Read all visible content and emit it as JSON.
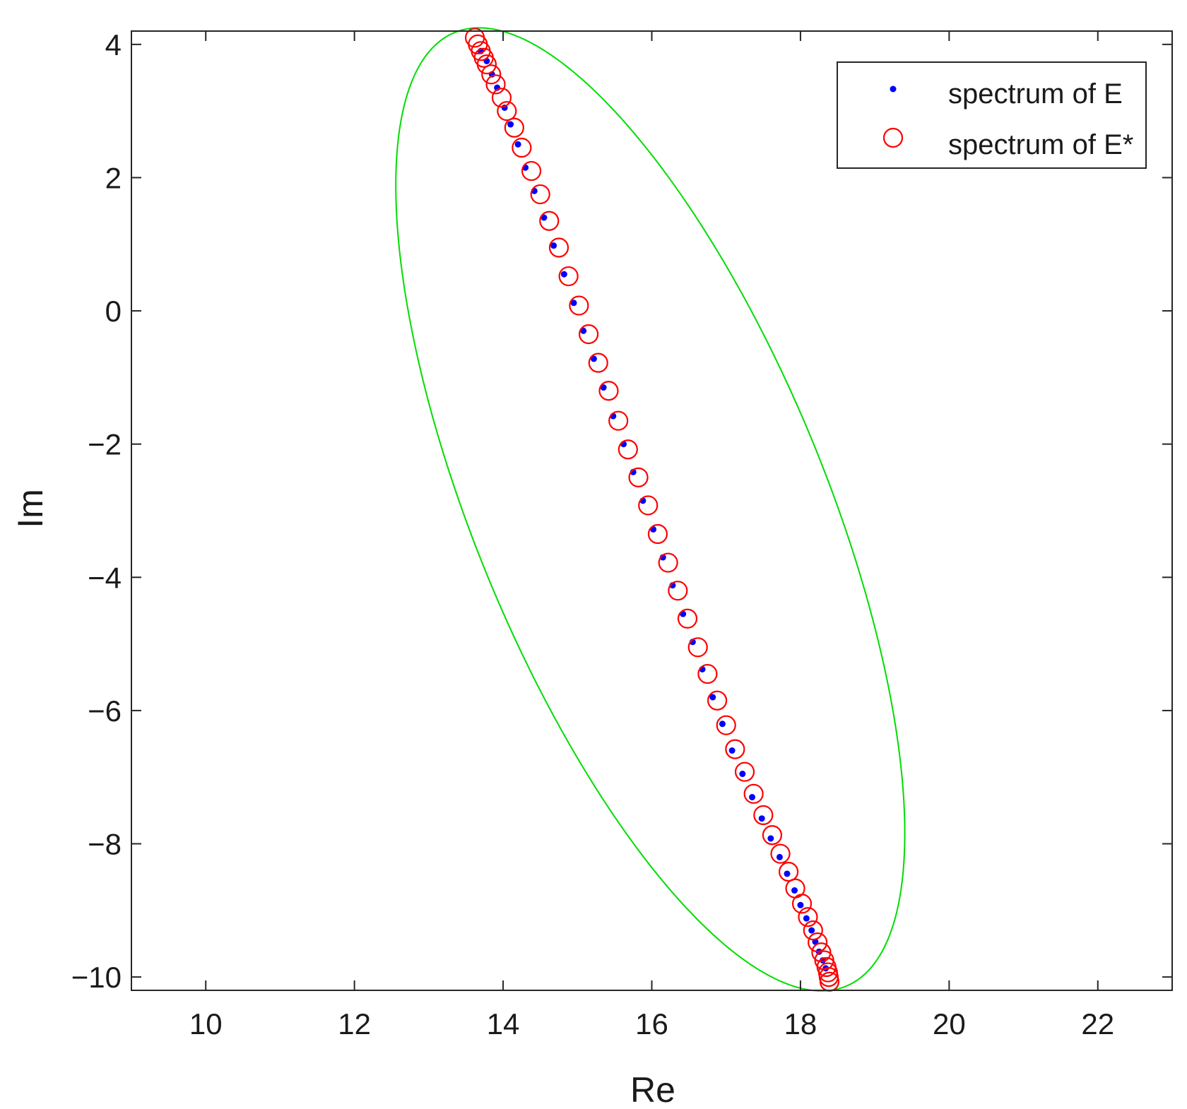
{
  "chart_data": {
    "type": "scatter",
    "xlabel": "Re",
    "ylabel": "Im",
    "xlim": [
      9,
      23
    ],
    "ylim": [
      -10.2,
      4.2
    ],
    "xticks": [
      10,
      12,
      14,
      16,
      18,
      20,
      22
    ],
    "xtick_labels": [
      "10",
      "12",
      "14",
      "16",
      "18",
      "20",
      "22"
    ],
    "yticks": [
      4,
      2,
      0,
      -2,
      -4,
      -6,
      -8,
      -10
    ],
    "ytick_labels": [
      "4",
      "2",
      "0",
      "−2",
      "−4",
      "−6",
      "−8",
      "−10"
    ],
    "grid": false,
    "legend_position": "top-right",
    "series": [
      {
        "name": "spectrum of E",
        "marker": "dot",
        "color": "#0000ff",
        "points": [
          [
            13.7,
            3.9
          ],
          [
            13.78,
            3.75
          ],
          [
            13.85,
            3.55
          ],
          [
            13.92,
            3.35
          ],
          [
            14.02,
            3.05
          ],
          [
            14.1,
            2.8
          ],
          [
            14.2,
            2.5
          ],
          [
            14.3,
            2.15
          ],
          [
            14.42,
            1.8
          ],
          [
            14.55,
            1.4
          ],
          [
            14.68,
            0.98
          ],
          [
            14.82,
            0.55
          ],
          [
            14.95,
            0.12
          ],
          [
            15.08,
            -0.3
          ],
          [
            15.22,
            -0.72
          ],
          [
            15.35,
            -1.15
          ],
          [
            15.48,
            -1.58
          ],
          [
            15.62,
            -2.0
          ],
          [
            15.75,
            -2.42
          ],
          [
            15.88,
            -2.85
          ],
          [
            16.02,
            -3.28
          ],
          [
            16.15,
            -3.7
          ],
          [
            16.28,
            -4.12
          ],
          [
            16.42,
            -4.55
          ],
          [
            16.55,
            -4.97
          ],
          [
            16.68,
            -5.38
          ],
          [
            16.82,
            -5.8
          ],
          [
            16.95,
            -6.2
          ],
          [
            17.08,
            -6.6
          ],
          [
            17.22,
            -6.95
          ],
          [
            17.35,
            -7.3
          ],
          [
            17.48,
            -7.62
          ],
          [
            17.6,
            -7.92
          ],
          [
            17.72,
            -8.2
          ],
          [
            17.82,
            -8.45
          ],
          [
            17.92,
            -8.7
          ],
          [
            18.0,
            -8.92
          ],
          [
            18.08,
            -9.12
          ],
          [
            18.15,
            -9.3
          ],
          [
            18.2,
            -9.47
          ],
          [
            18.25,
            -9.62
          ],
          [
            18.3,
            -9.75
          ],
          [
            18.34,
            -9.87
          ]
        ]
      },
      {
        "name": "spectrum of E*",
        "marker": "circle",
        "color": "#ff0000",
        "points": [
          [
            13.62,
            4.1
          ],
          [
            13.66,
            4.0
          ],
          [
            13.7,
            3.9
          ],
          [
            13.74,
            3.8
          ],
          [
            13.78,
            3.7
          ],
          [
            13.84,
            3.55
          ],
          [
            13.9,
            3.4
          ],
          [
            13.98,
            3.2
          ],
          [
            14.05,
            3.0
          ],
          [
            14.15,
            2.75
          ],
          [
            14.25,
            2.45
          ],
          [
            14.38,
            2.1
          ],
          [
            14.5,
            1.75
          ],
          [
            14.62,
            1.35
          ],
          [
            14.75,
            0.95
          ],
          [
            14.88,
            0.52
          ],
          [
            15.02,
            0.08
          ],
          [
            15.15,
            -0.35
          ],
          [
            15.28,
            -0.78
          ],
          [
            15.42,
            -1.2
          ],
          [
            15.55,
            -1.65
          ],
          [
            15.68,
            -2.08
          ],
          [
            15.82,
            -2.5
          ],
          [
            15.95,
            -2.92
          ],
          [
            16.08,
            -3.35
          ],
          [
            16.22,
            -3.78
          ],
          [
            16.35,
            -4.2
          ],
          [
            16.48,
            -4.62
          ],
          [
            16.62,
            -5.05
          ],
          [
            16.75,
            -5.45
          ],
          [
            16.88,
            -5.85
          ],
          [
            17.0,
            -6.22
          ],
          [
            17.12,
            -6.58
          ],
          [
            17.25,
            -6.92
          ],
          [
            17.37,
            -7.25
          ],
          [
            17.5,
            -7.57
          ],
          [
            17.62,
            -7.87
          ],
          [
            17.73,
            -8.15
          ],
          [
            17.84,
            -8.42
          ],
          [
            17.93,
            -8.67
          ],
          [
            18.02,
            -8.9
          ],
          [
            18.1,
            -9.1
          ],
          [
            18.17,
            -9.3
          ],
          [
            18.23,
            -9.48
          ],
          [
            18.28,
            -9.63
          ],
          [
            18.32,
            -9.75
          ],
          [
            18.35,
            -9.85
          ],
          [
            18.37,
            -9.93
          ],
          [
            18.38,
            -10.0
          ],
          [
            18.39,
            -10.07
          ]
        ]
      }
    ],
    "ellipse": {
      "color": "#00dd00",
      "cx": 15.98,
      "cy": -2.98,
      "rx": 7.63,
      "ry": 2.4,
      "rotation_deg": -70.3
    }
  }
}
